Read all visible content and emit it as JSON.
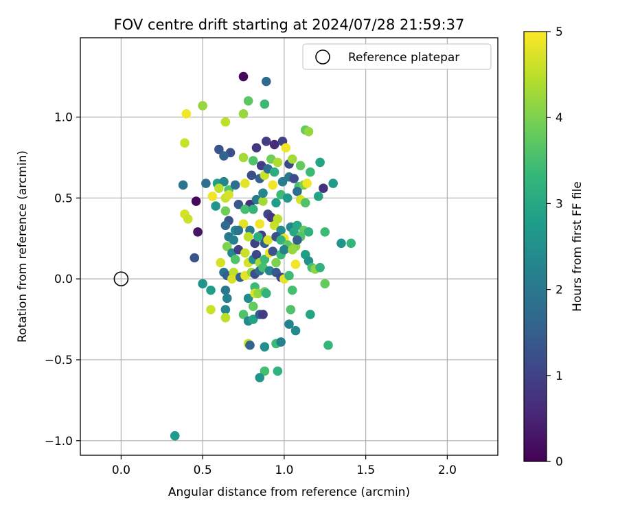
{
  "chart_data": {
    "type": "scatter",
    "title": "FOV centre drift starting at 2024/07/28 21:59:37",
    "xlabel": "Angular distance from reference (arcmin)",
    "ylabel": "Rotation from reference (arcmin)",
    "xlim": [
      -0.25,
      2.31
    ],
    "ylim": [
      -1.09,
      1.49
    ],
    "xticks": [
      0.0,
      0.5,
      1.0,
      1.5,
      2.0
    ],
    "xtick_labels": [
      "0.0",
      "0.5",
      "1.0",
      "1.5",
      "2.0"
    ],
    "yticks": [
      -1.0,
      -0.5,
      0.0,
      0.5,
      1.0
    ],
    "ytick_labels": [
      "−1.0",
      "−0.5",
      "0.0",
      "0.5",
      "1.0"
    ],
    "grid": true,
    "legend": {
      "position": "top-right",
      "label": "Reference platepar"
    },
    "reference": {
      "x": 0.0,
      "y": 0.0
    },
    "colorbar": {
      "label": "Hours from first FF file",
      "range": [
        0,
        5
      ],
      "ticks": [
        0,
        1,
        2,
        3,
        4,
        5
      ],
      "tick_labels": [
        "0",
        "1",
        "2",
        "3",
        "4",
        "5"
      ],
      "colormap": "viridis",
      "stops": [
        "#440154",
        "#482878",
        "#3e4989",
        "#31688e",
        "#26828e",
        "#1f9e89",
        "#35b779",
        "#6ece58",
        "#b5de2b",
        "#fde725"
      ]
    },
    "points": [
      {
        "x": 0.75,
        "y": 1.25,
        "h": 0.1
      },
      {
        "x": 0.89,
        "y": 1.22,
        "h": 1.7
      },
      {
        "x": 0.4,
        "y": 1.02,
        "h": 4.9
      },
      {
        "x": 0.5,
        "y": 1.07,
        "h": 4.2
      },
      {
        "x": 0.78,
        "y": 1.1,
        "h": 3.7
      },
      {
        "x": 0.75,
        "y": 1.02,
        "h": 4.2
      },
      {
        "x": 0.88,
        "y": 1.08,
        "h": 3.4
      },
      {
        "x": 0.64,
        "y": 0.97,
        "h": 4.5
      },
      {
        "x": 0.39,
        "y": 0.84,
        "h": 4.6
      },
      {
        "x": 1.13,
        "y": 0.92,
        "h": 3.8
      },
      {
        "x": 1.15,
        "y": 0.91,
        "h": 4.2
      },
      {
        "x": 0.6,
        "y": 0.8,
        "h": 1.3
      },
      {
        "x": 0.67,
        "y": 0.78,
        "h": 1.2
      },
      {
        "x": 0.83,
        "y": 0.81,
        "h": 0.8
      },
      {
        "x": 0.89,
        "y": 0.85,
        "h": 0.9
      },
      {
        "x": 0.94,
        "y": 0.83,
        "h": 0.6
      },
      {
        "x": 0.99,
        "y": 0.85,
        "h": 1.0
      },
      {
        "x": 1.01,
        "y": 0.81,
        "h": 4.9
      },
      {
        "x": 0.63,
        "y": 0.76,
        "h": 1.6
      },
      {
        "x": 0.75,
        "y": 0.75,
        "h": 4.3
      },
      {
        "x": 0.81,
        "y": 0.73,
        "h": 3.6
      },
      {
        "x": 0.86,
        "y": 0.7,
        "h": 0.9
      },
      {
        "x": 0.92,
        "y": 0.74,
        "h": 3.9
      },
      {
        "x": 0.96,
        "y": 0.72,
        "h": 4.4
      },
      {
        "x": 1.03,
        "y": 0.71,
        "h": 1.1
      },
      {
        "x": 1.05,
        "y": 0.74,
        "h": 4.3
      },
      {
        "x": 1.1,
        "y": 0.7,
        "h": 3.8
      },
      {
        "x": 1.16,
        "y": 0.66,
        "h": 3.4
      },
      {
        "x": 1.22,
        "y": 0.72,
        "h": 2.9
      },
      {
        "x": 0.38,
        "y": 0.58,
        "h": 1.9
      },
      {
        "x": 0.46,
        "y": 0.48,
        "h": 0.1
      },
      {
        "x": 0.59,
        "y": 0.59,
        "h": 2.8
      },
      {
        "x": 0.63,
        "y": 0.6,
        "h": 2.3
      },
      {
        "x": 0.6,
        "y": 0.56,
        "h": 4.5
      },
      {
        "x": 0.66,
        "y": 0.55,
        "h": 3.6
      },
      {
        "x": 0.7,
        "y": 0.58,
        "h": 1.8
      },
      {
        "x": 0.76,
        "y": 0.59,
        "h": 4.8
      },
      {
        "x": 0.8,
        "y": 0.64,
        "h": 1.2
      },
      {
        "x": 0.85,
        "y": 0.62,
        "h": 1.5
      },
      {
        "x": 0.88,
        "y": 0.64,
        "h": 4.6
      },
      {
        "x": 0.9,
        "y": 0.68,
        "h": 1.8
      },
      {
        "x": 0.94,
        "y": 0.66,
        "h": 3.1
      },
      {
        "x": 0.99,
        "y": 0.6,
        "h": 2.1
      },
      {
        "x": 1.03,
        "y": 0.63,
        "h": 2.0
      },
      {
        "x": 1.06,
        "y": 0.62,
        "h": 1.2
      },
      {
        "x": 1.09,
        "y": 0.57,
        "h": 3.5
      },
      {
        "x": 1.12,
        "y": 0.58,
        "h": 4.0
      },
      {
        "x": 1.14,
        "y": 0.59,
        "h": 4.9
      },
      {
        "x": 1.24,
        "y": 0.56,
        "h": 0.7
      },
      {
        "x": 1.3,
        "y": 0.59,
        "h": 2.7
      },
      {
        "x": 0.56,
        "y": 0.51,
        "h": 4.9
      },
      {
        "x": 0.64,
        "y": 0.5,
        "h": 4.6
      },
      {
        "x": 0.66,
        "y": 0.52,
        "h": 4.7
      },
      {
        "x": 0.72,
        "y": 0.46,
        "h": 1.4
      },
      {
        "x": 0.79,
        "y": 0.46,
        "h": 0.7
      },
      {
        "x": 0.83,
        "y": 0.49,
        "h": 2.0
      },
      {
        "x": 0.87,
        "y": 0.48,
        "h": 4.3
      },
      {
        "x": 0.87,
        "y": 0.53,
        "h": 2.3
      },
      {
        "x": 0.93,
        "y": 0.58,
        "h": 4.9
      },
      {
        "x": 0.95,
        "y": 0.47,
        "h": 2.8
      },
      {
        "x": 0.98,
        "y": 0.52,
        "h": 3.4
      },
      {
        "x": 1.02,
        "y": 0.5,
        "h": 2.7
      },
      {
        "x": 1.08,
        "y": 0.54,
        "h": 1.8
      },
      {
        "x": 1.1,
        "y": 0.49,
        "h": 4.7
      },
      {
        "x": 1.13,
        "y": 0.47,
        "h": 3.6
      },
      {
        "x": 1.21,
        "y": 0.51,
        "h": 2.9
      },
      {
        "x": 0.39,
        "y": 0.4,
        "h": 4.7
      },
      {
        "x": 0.41,
        "y": 0.37,
        "h": 4.6
      },
      {
        "x": 0.47,
        "y": 0.29,
        "h": 0.3
      },
      {
        "x": 0.52,
        "y": 0.59,
        "h": 1.8
      },
      {
        "x": 0.64,
        "y": 0.42,
        "h": 3.9
      },
      {
        "x": 0.66,
        "y": 0.36,
        "h": 1.3
      },
      {
        "x": 0.64,
        "y": 0.33,
        "h": 1.7
      },
      {
        "x": 0.7,
        "y": 0.3,
        "h": 2.3
      },
      {
        "x": 0.75,
        "y": 0.34,
        "h": 4.8
      },
      {
        "x": 0.76,
        "y": 0.43,
        "h": 3.5
      },
      {
        "x": 0.79,
        "y": 0.3,
        "h": 2.0
      },
      {
        "x": 0.81,
        "y": 0.43,
        "h": 3.3
      },
      {
        "x": 0.85,
        "y": 0.34,
        "h": 4.9
      },
      {
        "x": 0.86,
        "y": 0.27,
        "h": 0.9
      },
      {
        "x": 0.9,
        "y": 0.4,
        "h": 1.1
      },
      {
        "x": 0.92,
        "y": 0.38,
        "h": 0.8
      },
      {
        "x": 0.94,
        "y": 0.33,
        "h": 4.6
      },
      {
        "x": 0.96,
        "y": 0.37,
        "h": 4.5
      },
      {
        "x": 0.98,
        "y": 0.3,
        "h": 2.4
      },
      {
        "x": 1.0,
        "y": 0.25,
        "h": 4.9
      },
      {
        "x": 1.04,
        "y": 0.32,
        "h": 2.3
      },
      {
        "x": 1.06,
        "y": 0.29,
        "h": 3.0
      },
      {
        "x": 1.08,
        "y": 0.33,
        "h": 3.0
      },
      {
        "x": 1.12,
        "y": 0.3,
        "h": 3.8
      },
      {
        "x": 1.1,
        "y": 0.26,
        "h": 3.6
      },
      {
        "x": 0.58,
        "y": 0.45,
        "h": 2.6
      },
      {
        "x": 0.66,
        "y": 0.26,
        "h": 2.0
      },
      {
        "x": 0.69,
        "y": 0.24,
        "h": 2.2
      },
      {
        "x": 0.72,
        "y": 0.3,
        "h": 1.9
      },
      {
        "x": 0.78,
        "y": 0.26,
        "h": 4.5
      },
      {
        "x": 0.82,
        "y": 0.22,
        "h": 1.0
      },
      {
        "x": 0.84,
        "y": 0.26,
        "h": 3.1
      },
      {
        "x": 0.88,
        "y": 0.22,
        "h": 1.5
      },
      {
        "x": 0.9,
        "y": 0.24,
        "h": 4.7
      },
      {
        "x": 0.95,
        "y": 0.26,
        "h": 1.2
      },
      {
        "x": 0.98,
        "y": 0.24,
        "h": 3.2
      },
      {
        "x": 1.02,
        "y": 0.21,
        "h": 3.7
      },
      {
        "x": 1.07,
        "y": 0.2,
        "h": 4.1
      },
      {
        "x": 1.08,
        "y": 0.24,
        "h": 1.5
      },
      {
        "x": 1.15,
        "y": 0.29,
        "h": 3.2
      },
      {
        "x": 1.25,
        "y": 0.29,
        "h": 3.4
      },
      {
        "x": 1.35,
        "y": 0.22,
        "h": 2.6
      },
      {
        "x": 1.41,
        "y": 0.22,
        "h": 3.3
      },
      {
        "x": 0.45,
        "y": 0.13,
        "h": 1.3
      },
      {
        "x": 0.61,
        "y": 0.1,
        "h": 4.7
      },
      {
        "x": 0.65,
        "y": 0.2,
        "h": 4.0
      },
      {
        "x": 0.68,
        "y": 0.16,
        "h": 2.3
      },
      {
        "x": 0.7,
        "y": 0.12,
        "h": 3.6
      },
      {
        "x": 0.72,
        "y": 0.18,
        "h": 0.9
      },
      {
        "x": 0.76,
        "y": 0.16,
        "h": 4.6
      },
      {
        "x": 0.78,
        "y": 0.1,
        "h": 4.7
      },
      {
        "x": 0.81,
        "y": 0.12,
        "h": 2.5
      },
      {
        "x": 0.83,
        "y": 0.15,
        "h": 1.1
      },
      {
        "x": 0.85,
        "y": 0.1,
        "h": 4.3
      },
      {
        "x": 0.88,
        "y": 0.12,
        "h": 3.4
      },
      {
        "x": 0.91,
        "y": 0.16,
        "h": 4.9
      },
      {
        "x": 0.93,
        "y": 0.17,
        "h": 1.3
      },
      {
        "x": 0.95,
        "y": 0.1,
        "h": 4.0
      },
      {
        "x": 0.98,
        "y": 0.15,
        "h": 3.4
      },
      {
        "x": 1.0,
        "y": 0.18,
        "h": 2.2
      },
      {
        "x": 1.05,
        "y": 0.18,
        "h": 4.2
      },
      {
        "x": 1.07,
        "y": 0.09,
        "h": 4.9
      },
      {
        "x": 1.13,
        "y": 0.15,
        "h": 2.8
      },
      {
        "x": 1.15,
        "y": 0.11,
        "h": 2.5
      },
      {
        "x": 1.17,
        "y": 0.07,
        "h": 3.5
      },
      {
        "x": 1.19,
        "y": 0.06,
        "h": 4.1
      },
      {
        "x": 1.22,
        "y": 0.07,
        "h": 3.2
      },
      {
        "x": 0.5,
        "y": -0.03,
        "h": 2.6
      },
      {
        "x": 0.55,
        "y": -0.07,
        "h": 2.8
      },
      {
        "x": 0.63,
        "y": 0.04,
        "h": 1.9
      },
      {
        "x": 0.65,
        "y": 0.02,
        "h": 1.5
      },
      {
        "x": 0.69,
        "y": 0.04,
        "h": 4.5
      },
      {
        "x": 0.68,
        "y": 0.0,
        "h": 4.7
      },
      {
        "x": 0.73,
        "y": 0.01,
        "h": 1.6
      },
      {
        "x": 0.76,
        "y": 0.02,
        "h": 4.8
      },
      {
        "x": 0.8,
        "y": 0.04,
        "h": 4.2
      },
      {
        "x": 0.82,
        "y": 0.03,
        "h": 1.2
      },
      {
        "x": 0.85,
        "y": 0.05,
        "h": 1.8
      },
      {
        "x": 0.87,
        "y": 0.07,
        "h": 3.5
      },
      {
        "x": 0.91,
        "y": 0.05,
        "h": 2.3
      },
      {
        "x": 0.95,
        "y": 0.04,
        "h": 1.4
      },
      {
        "x": 0.98,
        "y": 0.01,
        "h": 1.1
      },
      {
        "x": 1.0,
        "y": 0.0,
        "h": 4.8
      },
      {
        "x": 1.03,
        "y": 0.02,
        "h": 3.4
      },
      {
        "x": 1.25,
        "y": -0.03,
        "h": 3.8
      },
      {
        "x": 0.55,
        "y": -0.19,
        "h": 4.6
      },
      {
        "x": 0.64,
        "y": -0.07,
        "h": 2.0
      },
      {
        "x": 0.65,
        "y": -0.12,
        "h": 2.2
      },
      {
        "x": 0.64,
        "y": -0.19,
        "h": 2.3
      },
      {
        "x": 0.64,
        "y": -0.24,
        "h": 4.5
      },
      {
        "x": 0.78,
        "y": -0.12,
        "h": 2.4
      },
      {
        "x": 0.82,
        "y": -0.05,
        "h": 3.4
      },
      {
        "x": 0.82,
        "y": -0.09,
        "h": 4.7
      },
      {
        "x": 0.84,
        "y": -0.09,
        "h": 4.2
      },
      {
        "x": 0.88,
        "y": -0.08,
        "h": 3.9
      },
      {
        "x": 0.89,
        "y": -0.09,
        "h": 3.2
      },
      {
        "x": 0.81,
        "y": -0.17,
        "h": 3.8
      },
      {
        "x": 0.75,
        "y": -0.22,
        "h": 3.6
      },
      {
        "x": 0.78,
        "y": -0.26,
        "h": 2.4
      },
      {
        "x": 0.81,
        "y": -0.25,
        "h": 2.9
      },
      {
        "x": 0.85,
        "y": -0.22,
        "h": 1.5
      },
      {
        "x": 0.87,
        "y": -0.22,
        "h": 0.9
      },
      {
        "x": 1.05,
        "y": -0.07,
        "h": 3.5
      },
      {
        "x": 1.04,
        "y": -0.19,
        "h": 3.6
      },
      {
        "x": 1.03,
        "y": -0.28,
        "h": 2.2
      },
      {
        "x": 1.07,
        "y": -0.32,
        "h": 2.4
      },
      {
        "x": 1.16,
        "y": -0.22,
        "h": 2.9
      },
      {
        "x": 0.78,
        "y": -0.4,
        "h": 4.6
      },
      {
        "x": 0.79,
        "y": -0.41,
        "h": 1.6
      },
      {
        "x": 0.88,
        "y": -0.42,
        "h": 2.5
      },
      {
        "x": 0.95,
        "y": -0.4,
        "h": 3.4
      },
      {
        "x": 0.98,
        "y": -0.39,
        "h": 2.2
      },
      {
        "x": 1.27,
        "y": -0.41,
        "h": 3.3
      },
      {
        "x": 0.88,
        "y": -0.57,
        "h": 3.5
      },
      {
        "x": 0.96,
        "y": -0.57,
        "h": 3.2
      },
      {
        "x": 0.85,
        "y": -0.61,
        "h": 2.6
      },
      {
        "x": 0.33,
        "y": -0.97,
        "h": 2.7
      }
    ]
  }
}
